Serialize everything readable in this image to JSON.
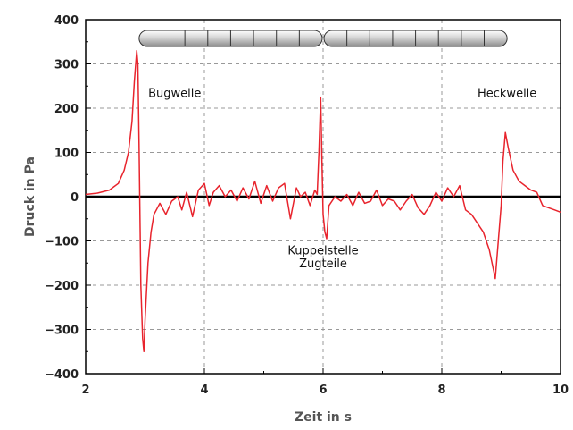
{
  "chart_data": {
    "type": "line",
    "title": "",
    "xlabel": "Zeit in s",
    "ylabel": "Druck in Pa",
    "xlim": [
      2,
      10
    ],
    "ylim": [
      -400,
      400
    ],
    "x_ticks": [
      2,
      4,
      6,
      8,
      10
    ],
    "y_ticks": [
      -400,
      -300,
      -200,
      -100,
      0,
      100,
      200,
      300,
      400
    ],
    "x_tick_labels": [
      "2",
      "4",
      "6",
      "8",
      "10"
    ],
    "y_tick_labels": [
      "−400",
      "−300",
      "−200",
      "−100",
      "0",
      "100",
      "200",
      "300",
      "400"
    ],
    "grid": true,
    "line_color": "#e8242d",
    "series": [
      {
        "x": [
          2.0,
          2.2,
          2.4,
          2.55,
          2.65,
          2.72,
          2.78,
          2.82,
          2.86,
          2.88,
          2.9,
          2.93,
          2.96,
          2.98,
          3.0,
          3.05,
          3.1,
          3.15,
          3.25,
          3.35,
          3.45,
          3.55,
          3.62,
          3.7,
          3.8,
          3.9,
          4.0,
          4.08,
          4.15,
          4.25,
          4.35,
          4.45,
          4.55,
          4.65,
          4.75,
          4.85,
          4.95,
          5.05,
          5.15,
          5.25,
          5.35,
          5.45,
          5.55,
          5.62,
          5.7,
          5.78,
          5.86,
          5.9,
          5.93,
          5.96,
          5.98,
          6.0,
          6.03,
          6.06,
          6.1,
          6.2,
          6.3,
          6.4,
          6.5,
          6.6,
          6.7,
          6.8,
          6.9,
          7.0,
          7.1,
          7.2,
          7.3,
          7.4,
          7.5,
          7.6,
          7.7,
          7.8,
          7.9,
          8.0,
          8.1,
          8.2,
          8.3,
          8.4,
          8.5,
          8.6,
          8.7,
          8.8,
          8.9,
          9.0,
          9.03,
          9.07,
          9.12,
          9.2,
          9.3,
          9.4,
          9.5,
          9.6,
          9.7,
          9.8,
          9.9,
          10.0
        ],
        "y": [
          5,
          8,
          15,
          30,
          60,
          100,
          170,
          260,
          330,
          300,
          120,
          -200,
          -320,
          -350,
          -280,
          -150,
          -80,
          -40,
          -15,
          -40,
          -10,
          0,
          -30,
          10,
          -45,
          15,
          30,
          -20,
          10,
          25,
          0,
          15,
          -10,
          20,
          -5,
          35,
          -15,
          25,
          -10,
          20,
          30,
          -50,
          20,
          0,
          10,
          -20,
          15,
          5,
          100,
          225,
          80,
          -40,
          -80,
          -95,
          -20,
          0,
          -10,
          5,
          -20,
          10,
          -15,
          -10,
          15,
          -20,
          -5,
          -10,
          -30,
          -10,
          5,
          -25,
          -40,
          -20,
          10,
          -10,
          20,
          0,
          25,
          -30,
          -40,
          -60,
          -80,
          -120,
          -185,
          -20,
          80,
          145,
          110,
          60,
          35,
          25,
          15,
          10,
          -20,
          -25,
          -30,
          -35
        ]
      }
    ],
    "annotations": [
      {
        "text": "Bugwelle",
        "x": 3.5,
        "y": 225
      },
      {
        "text": "Heckwelle",
        "x": 9.1,
        "y": 225
      },
      {
        "text": "Kuppelstelle",
        "x": 6.0,
        "y": -130
      },
      {
        "text": "Zugteile",
        "x": 6.0,
        "y": -160
      }
    ],
    "train_icon": {
      "cars": 2,
      "segments_per_car": 8,
      "x_ranges": [
        [
          2.9,
          6.0
        ],
        [
          6.0,
          9.1
        ]
      ]
    }
  }
}
